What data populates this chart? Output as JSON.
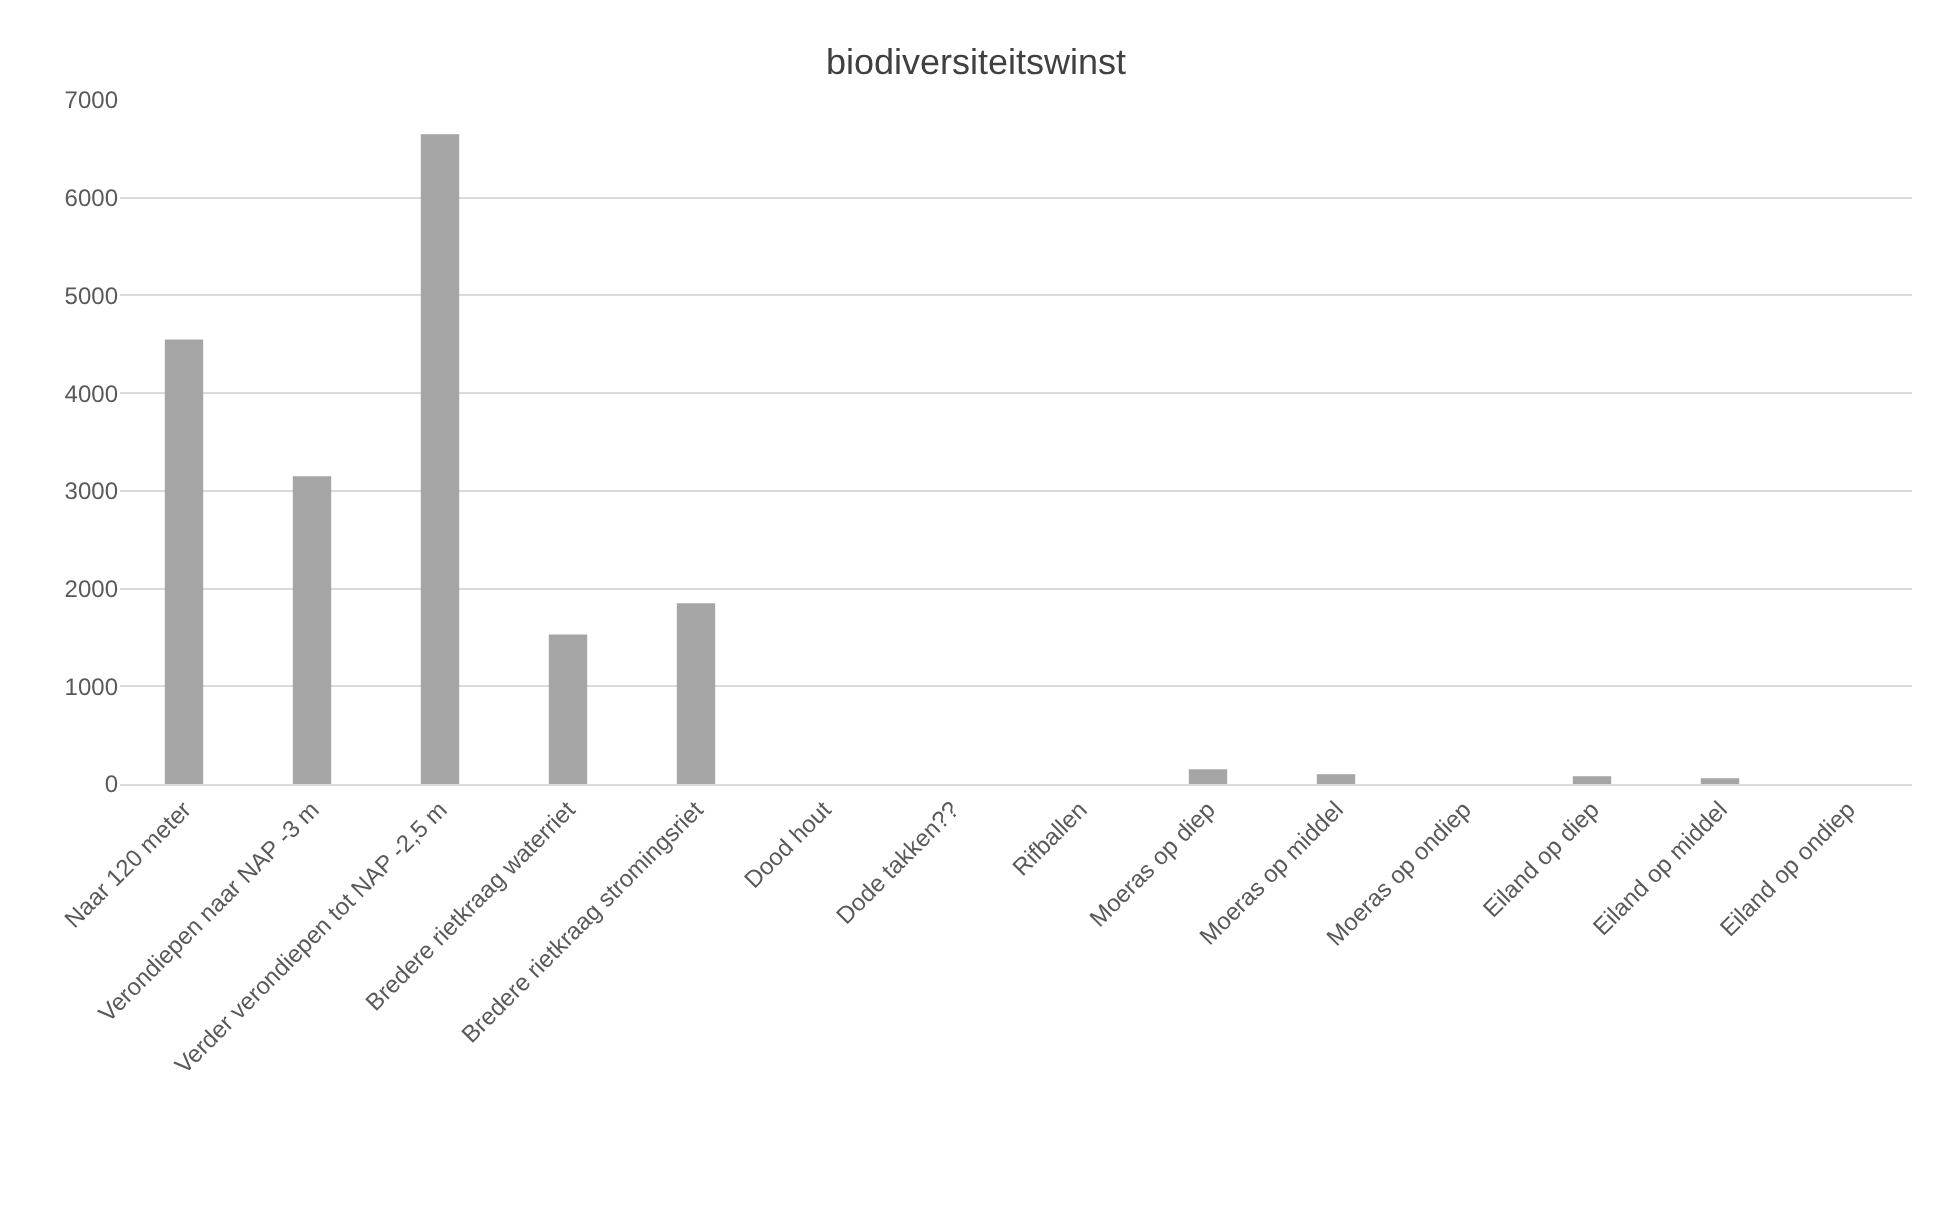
{
  "chart_data": {
    "type": "bar",
    "title": "biodiversiteitswinst",
    "categories": [
      "Naar 120 meter",
      "Verondiepen naar NAP -3 m",
      "Verder verondiepen tot NAP -2,5 m",
      "Bredere rietkraag waterriet",
      "Bredere rietkraag stromingsriet",
      "Dood hout",
      "Dode takken??",
      "Rifballen",
      "Moeras op diep",
      "Moeras op middel",
      "Moeras op ondiep",
      "Eiland op diep",
      "Eiland op middel",
      "Eiland op ondiep"
    ],
    "values": [
      4550,
      3150,
      6650,
      1530,
      1850,
      0,
      0,
      0,
      150,
      100,
      0,
      80,
      60,
      0
    ],
    "color": "#a5a5a5",
    "ylim": [
      0,
      7000
    ],
    "yticks": [
      0,
      1000,
      2000,
      3000,
      4000,
      5000,
      6000,
      7000
    ],
    "grid": "y",
    "legend": false
  }
}
